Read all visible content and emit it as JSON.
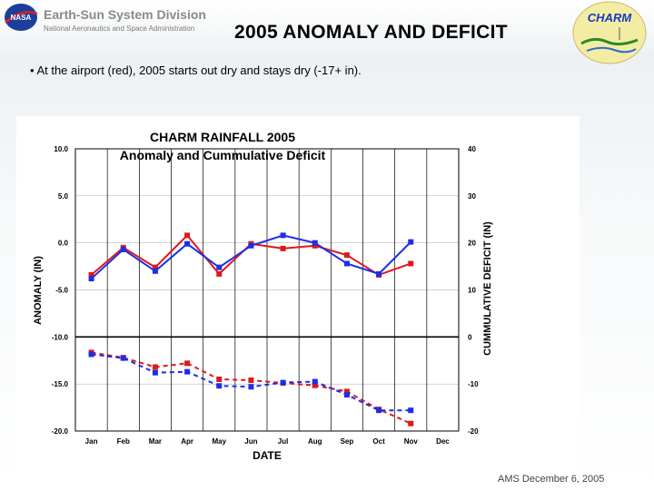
{
  "header": {
    "org_name": "Earth-Sun System Division",
    "org_sub": "National Aeronautics and Space Administration",
    "title": "2005 ANOMALY AND DEFICIT",
    "nasa_logo_text": "NASA",
    "charm_logo_text": "CHARM"
  },
  "bullet": "• At the airport (red), 2005 starts out dry and stays dry (-17+ in).",
  "footer": "AMS December 6, 2005",
  "colors": {
    "red": "#e01818",
    "blue": "#1c2ee8",
    "title_red": "#cc0000"
  },
  "chart_data": {
    "type": "line",
    "title": "CHARM RAINFALL 2005",
    "subtitle": "Anomaly and Cummulative Deficit",
    "xlabel": "DATE",
    "ylabel_left": "ANOMALY (IN)",
    "ylabel_right": "CUMMULATIVE DEFICIT (IN)",
    "categories": [
      "Jan",
      "Feb",
      "Mar",
      "Apr",
      "May",
      "Jun",
      "Jul",
      "Aug",
      "Sep",
      "Oct",
      "Nov",
      "Dec"
    ],
    "ylim_left": [
      -20,
      10
    ],
    "ylim_right": [
      -20,
      40
    ],
    "yticks_left": [
      "10.0",
      "5.0",
      "0.0",
      "-5.0",
      "-10.0",
      "-15.0",
      "-20.0"
    ],
    "yticks_right": [
      "40",
      "30",
      "20",
      "10",
      "0",
      "-10",
      "-20"
    ],
    "grid": true,
    "series": [
      {
        "color": "red",
        "axis": "left",
        "style": "solid",
        "values": [
          -3.4,
          -0.5,
          -2.6,
          0.8,
          -3.3,
          -0.1,
          -0.6,
          -0.3,
          -1.3,
          -3.4,
          -2.2,
          null
        ]
      },
      {
        "color": "blue",
        "axis": "left",
        "style": "solid",
        "values": [
          -3.8,
          -0.7,
          -3.0,
          -0.1,
          -2.6,
          -0.3,
          0.8,
          0.0,
          -2.2,
          -3.3,
          0.1,
          null
        ]
      },
      {
        "color": "red",
        "axis": "right",
        "style": "dashed",
        "values": [
          -3.3,
          -4.4,
          -6.4,
          -5.6,
          -9.0,
          -9.2,
          -9.8,
          -10.3,
          -11.6,
          -15.4,
          -18.4,
          null
        ]
      },
      {
        "color": "blue",
        "axis": "right",
        "style": "dashed",
        "values": [
          -3.7,
          -4.5,
          -7.6,
          -7.4,
          -10.4,
          -10.6,
          -9.7,
          -9.5,
          -12.3,
          -15.6,
          -15.6,
          null
        ]
      }
    ]
  }
}
